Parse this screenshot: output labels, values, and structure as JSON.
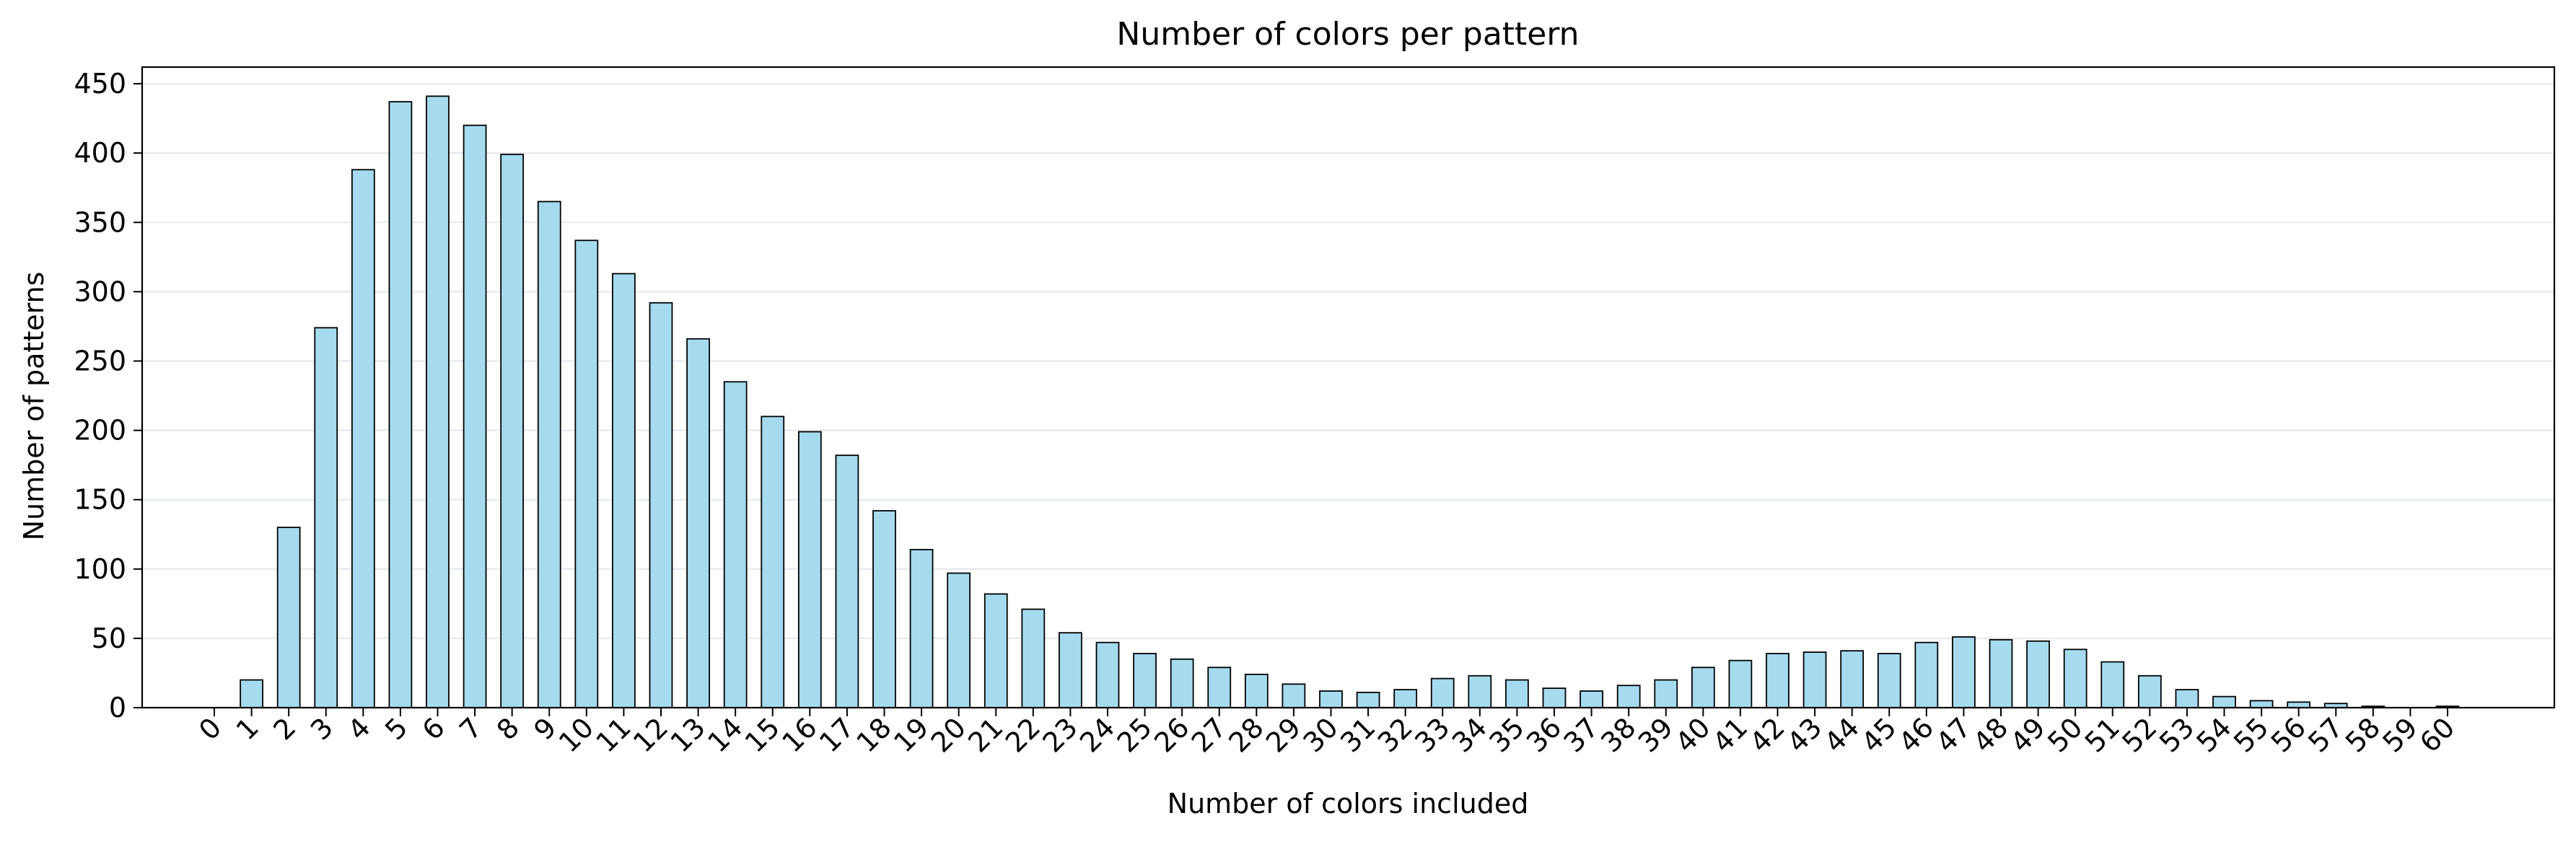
{
  "chart_data": {
    "type": "bar",
    "title": "Number of colors per pattern",
    "xlabel": "Number of colors included",
    "ylabel": "Number of patterns",
    "ylim": [
      0,
      462
    ],
    "yticks": [
      0,
      50,
      100,
      150,
      200,
      250,
      300,
      350,
      400,
      450
    ],
    "grid": "y",
    "bar_color": "#a6dbef",
    "edge_color": "#000000",
    "categories": [
      "0",
      "1",
      "2",
      "3",
      "4",
      "5",
      "6",
      "7",
      "8",
      "9",
      "10",
      "11",
      "12",
      "13",
      "14",
      "15",
      "16",
      "17",
      "18",
      "19",
      "20",
      "21",
      "22",
      "23",
      "24",
      "25",
      "26",
      "27",
      "28",
      "29",
      "30",
      "31",
      "32",
      "33",
      "34",
      "35",
      "36",
      "37",
      "38",
      "39",
      "40",
      "41",
      "42",
      "43",
      "44",
      "45",
      "46",
      "47",
      "48",
      "49",
      "50",
      "51",
      "52",
      "53",
      "54",
      "55",
      "56",
      "57",
      "58",
      "59",
      "60"
    ],
    "values": [
      0,
      20,
      130,
      274,
      388,
      437,
      441,
      420,
      399,
      365,
      337,
      313,
      292,
      266,
      235,
      210,
      199,
      182,
      142,
      114,
      97,
      82,
      71,
      54,
      47,
      39,
      35,
      29,
      24,
      17,
      12,
      11,
      13,
      21,
      23,
      20,
      14,
      12,
      16,
      20,
      29,
      34,
      39,
      40,
      41,
      39,
      47,
      51,
      49,
      48,
      42,
      33,
      23,
      13,
      8,
      5,
      4,
      3,
      1,
      0,
      1
    ]
  }
}
